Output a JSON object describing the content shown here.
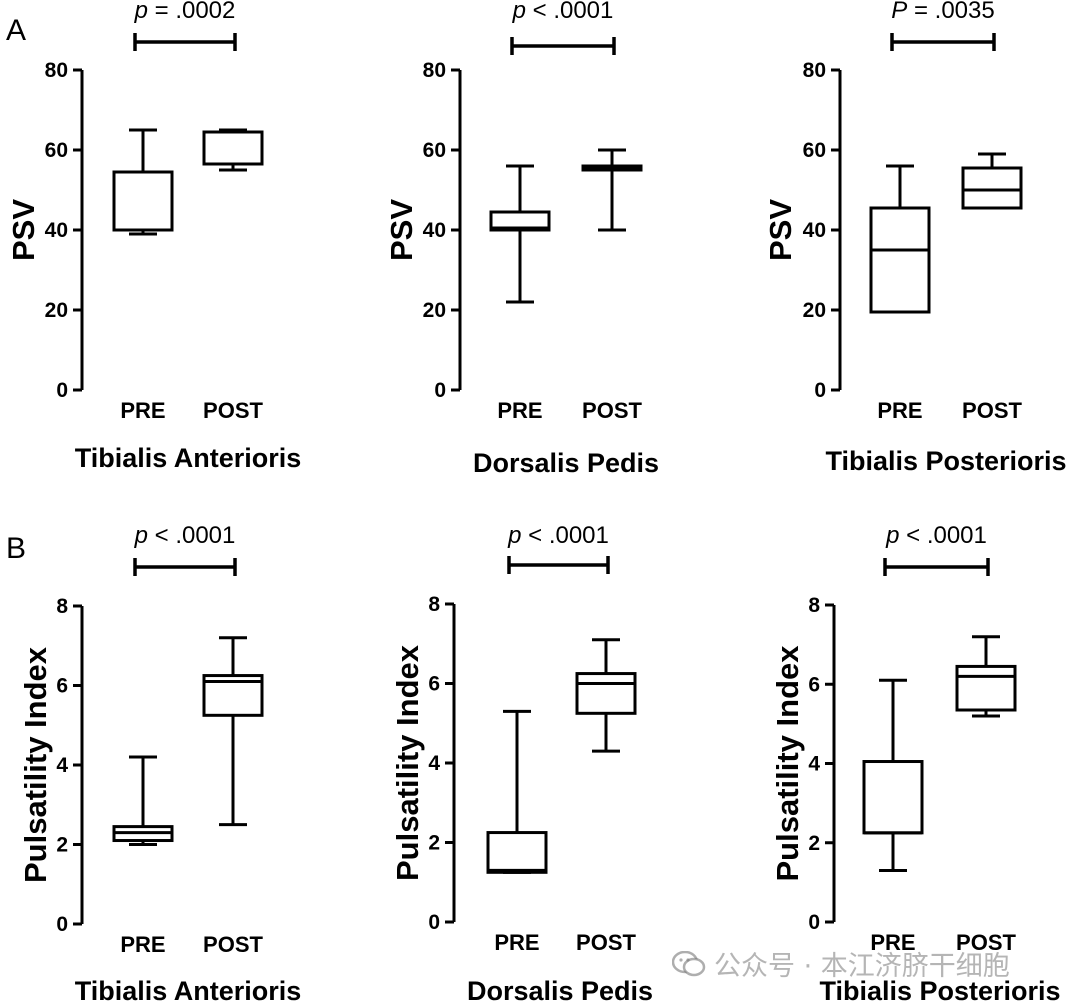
{
  "figure": {
    "panel_labels": [
      "A",
      "B"
    ],
    "colors": {
      "ink": "#000000",
      "background": "#ffffff",
      "watermark": "#8a8a8a"
    }
  },
  "watermark": {
    "text": "公众号 · 本江济脐干细胞",
    "icon": "wechat-icon"
  },
  "chart_data": [
    {
      "id": "a1",
      "panel": "A",
      "type": "box",
      "title": "Tibialis Anterioris",
      "ylabel": "PSV",
      "ylim": [
        0,
        80
      ],
      "yticks": [
        0,
        20,
        40,
        60,
        80
      ],
      "categories": [
        "PRE",
        "POST"
      ],
      "p_label": "p = .0002",
      "boxes": [
        {
          "category": "PRE",
          "min": 39,
          "q1": 40,
          "median": 40,
          "q3": 54.5,
          "max": 65
        },
        {
          "category": "POST",
          "min": 55,
          "q1": 56.5,
          "median": 64.5,
          "q3": 64.5,
          "max": 65
        }
      ]
    },
    {
      "id": "a2",
      "panel": "A",
      "type": "box",
      "title": "Dorsalis Pedis",
      "ylabel": "PSV",
      "ylim": [
        0,
        80
      ],
      "yticks": [
        0,
        20,
        40,
        60,
        80
      ],
      "categories": [
        "PRE",
        "POST"
      ],
      "p_label": "p < .0001",
      "boxes": [
        {
          "category": "PRE",
          "min": 22,
          "q1": 40,
          "median": 40.5,
          "q3": 44.5,
          "max": 56
        },
        {
          "category": "POST",
          "min": 40,
          "q1": 55,
          "median": 55.5,
          "q3": 56,
          "max": 60
        }
      ]
    },
    {
      "id": "a3",
      "panel": "A",
      "type": "box",
      "title": "Tibialis Posterioris",
      "ylabel": "PSV",
      "ylim": [
        0,
        80
      ],
      "yticks": [
        0,
        20,
        40,
        60,
        80
      ],
      "categories": [
        "PRE",
        "POST"
      ],
      "p_label": "P = .0035",
      "boxes": [
        {
          "category": "PRE",
          "min": 19.5,
          "q1": 19.5,
          "median": 35,
          "q3": 45.5,
          "max": 56
        },
        {
          "category": "POST",
          "min": 45.5,
          "q1": 45.5,
          "median": 50,
          "q3": 55.5,
          "max": 59
        }
      ]
    },
    {
      "id": "b1",
      "panel": "B",
      "type": "box",
      "title": "Tibialis Anterioris",
      "ylabel": "Pulsatility Index",
      "ylim": [
        0,
        8
      ],
      "yticks": [
        0,
        2,
        4,
        6,
        8
      ],
      "categories": [
        "PRE",
        "POST"
      ],
      "p_label": "p < .0001",
      "boxes": [
        {
          "category": "PRE",
          "min": 2.0,
          "q1": 2.1,
          "median": 2.3,
          "q3": 2.45,
          "max": 4.2
        },
        {
          "category": "POST",
          "min": 2.5,
          "q1": 5.25,
          "median": 6.1,
          "q3": 6.25,
          "max": 7.2
        }
      ]
    },
    {
      "id": "b2",
      "panel": "B",
      "type": "box",
      "title": "Dorsalis Pedis",
      "ylabel": "Pulsatility Index",
      "ylim": [
        0,
        8
      ],
      "yticks": [
        0,
        2,
        4,
        6,
        8
      ],
      "categories": [
        "PRE",
        "POST"
      ],
      "p_label": "p < .0001",
      "boxes": [
        {
          "category": "PRE",
          "min": 1.25,
          "q1": 1.25,
          "median": 1.3,
          "q3": 2.25,
          "max": 5.3
        },
        {
          "category": "POST",
          "min": 4.3,
          "q1": 5.25,
          "median": 6.0,
          "q3": 6.25,
          "max": 7.1
        }
      ]
    },
    {
      "id": "b3",
      "panel": "B",
      "type": "box",
      "title": "Tibialis Posterioris",
      "ylabel": "Pulsatility Index",
      "ylim": [
        0,
        8
      ],
      "yticks": [
        0,
        2,
        4,
        6,
        8
      ],
      "categories": [
        "PRE",
        "POST"
      ],
      "p_label": "p < .0001",
      "boxes": [
        {
          "category": "PRE",
          "min": 1.3,
          "q1": 2.25,
          "median": 2.25,
          "q3": 4.05,
          "max": 6.1
        },
        {
          "category": "POST",
          "min": 5.2,
          "q1": 5.35,
          "median": 6.2,
          "q3": 6.45,
          "max": 7.2
        }
      ]
    }
  ]
}
